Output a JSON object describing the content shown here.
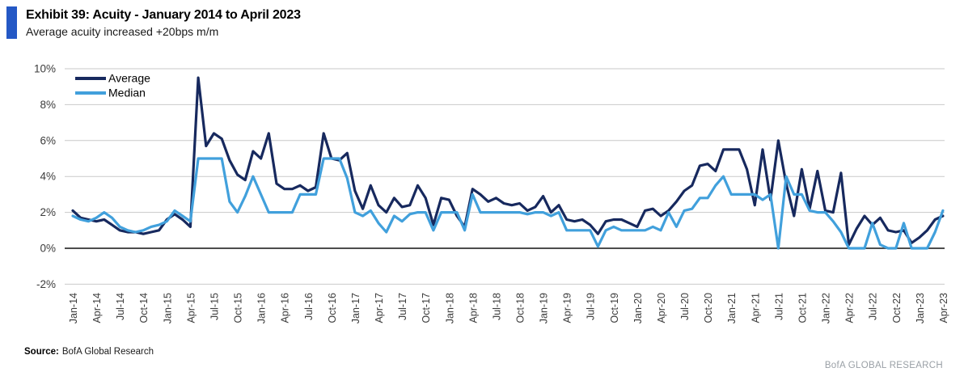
{
  "header": {
    "title": "Exhibit 39: Acuity - January 2014 to April 2023",
    "subtitle": "Average acuity increased +20bps m/m"
  },
  "footer": {
    "source_label": "Source:",
    "source_text": "BofA Global Research",
    "brand": "BofA GLOBAL RESEARCH"
  },
  "colors": {
    "average": "#17295e",
    "median": "#41a0dc",
    "accent_bar": "#2458c5",
    "grid": "#c9c9c9",
    "zero_axis": "#4d4d4d",
    "tick_text": "#3c3c3c",
    "legend_text": "#000000"
  },
  "chart_data": {
    "type": "line",
    "title": "Acuity - January 2014 to April 2023",
    "x_unit": "month",
    "x_start": "Jan-14",
    "x_end": "Apr-23",
    "ylim": [
      -2,
      10
    ],
    "grid": "horizontal",
    "legend_position": "top-left-inside",
    "y_ticks": [
      {
        "value": 10,
        "label": "10%"
      },
      {
        "value": 8,
        "label": "8%"
      },
      {
        "value": 6,
        "label": "6%"
      },
      {
        "value": 4,
        "label": "4%"
      },
      {
        "value": 2,
        "label": "2%"
      },
      {
        "value": 0,
        "label": "0%"
      },
      {
        "value": -2,
        "label": "-2%"
      }
    ],
    "x_ticks": [
      "Jan-14",
      "Apr-14",
      "Jul-14",
      "Oct-14",
      "Jan-15",
      "Apr-15",
      "Jul-15",
      "Oct-15",
      "Jan-16",
      "Apr-16",
      "Jul-16",
      "Oct-16",
      "Jan-17",
      "Apr-17",
      "Jul-17",
      "Oct-17",
      "Jan-18",
      "Apr-18",
      "Jul-18",
      "Oct-18",
      "Jan-19",
      "Apr-19",
      "Jul-19",
      "Oct-19",
      "Jan-20",
      "Apr-20",
      "Jul-20",
      "Oct-20",
      "Jan-21",
      "Apr-21",
      "Jul-21",
      "Oct-21",
      "Jan-22",
      "Apr-22",
      "Jul-22",
      "Oct-22",
      "Jan-23",
      "Apr-23"
    ],
    "series": [
      {
        "name": "Average",
        "color_key": "average",
        "values": [
          2.1,
          1.7,
          1.6,
          1.5,
          1.6,
          1.3,
          1.0,
          0.9,
          0.9,
          0.8,
          0.9,
          1.0,
          1.6,
          1.9,
          1.6,
          1.2,
          9.5,
          5.7,
          6.4,
          6.1,
          4.9,
          4.1,
          3.8,
          5.4,
          5.0,
          6.4,
          3.6,
          3.3,
          3.3,
          3.5,
          3.2,
          3.4,
          6.4,
          5.0,
          4.9,
          5.3,
          3.2,
          2.2,
          3.5,
          2.4,
          2.0,
          2.8,
          2.3,
          2.4,
          3.5,
          2.8,
          1.3,
          2.8,
          2.7,
          1.8,
          1.2,
          3.3,
          3.0,
          2.6,
          2.8,
          2.5,
          2.4,
          2.5,
          2.1,
          2.3,
          2.9,
          2.0,
          2.4,
          1.6,
          1.5,
          1.6,
          1.3,
          0.8,
          1.5,
          1.6,
          1.6,
          1.4,
          1.2,
          2.1,
          2.2,
          1.8,
          2.1,
          2.6,
          3.2,
          3.5,
          4.6,
          4.7,
          4.3,
          5.5,
          5.5,
          5.5,
          4.4,
          2.4,
          5.5,
          2.7,
          6.0,
          3.6,
          1.8,
          4.4,
          2.2,
          4.3,
          2.1,
          2.0,
          4.2,
          0.2,
          1.1,
          1.8,
          1.3,
          1.7,
          1.0,
          0.9,
          1.0,
          0.3,
          0.6,
          1.0,
          1.6,
          1.8
        ]
      },
      {
        "name": "Median",
        "color_key": "median",
        "values": [
          1.8,
          1.6,
          1.5,
          1.7,
          2.0,
          1.7,
          1.2,
          1.0,
          0.9,
          1.0,
          1.2,
          1.3,
          1.5,
          2.1,
          1.8,
          1.5,
          5.0,
          5.0,
          5.0,
          5.0,
          2.6,
          2.0,
          2.9,
          4.0,
          3.0,
          2.0,
          2.0,
          2.0,
          2.0,
          3.0,
          3.0,
          3.0,
          5.0,
          5.0,
          5.0,
          3.9,
          2.0,
          1.8,
          2.1,
          1.4,
          0.9,
          1.8,
          1.5,
          1.9,
          2.0,
          2.0,
          1.0,
          2.0,
          2.0,
          2.0,
          1.0,
          3.0,
          2.0,
          2.0,
          2.0,
          2.0,
          2.0,
          2.0,
          1.9,
          2.0,
          2.0,
          1.8,
          2.0,
          1.0,
          1.0,
          1.0,
          1.0,
          0.1,
          1.0,
          1.2,
          1.0,
          1.0,
          1.0,
          1.0,
          1.2,
          1.0,
          2.0,
          1.2,
          2.1,
          2.2,
          2.8,
          2.8,
          3.5,
          4.0,
          3.0,
          3.0,
          3.0,
          3.0,
          2.7,
          3.0,
          0.0,
          4.0,
          3.0,
          3.0,
          2.1,
          2.0,
          2.0,
          1.5,
          0.9,
          0.0,
          0.0,
          0.0,
          1.4,
          0.2,
          0.0,
          0.0,
          1.4,
          0.0,
          0.0,
          0.0,
          0.9,
          2.1
        ]
      }
    ]
  }
}
